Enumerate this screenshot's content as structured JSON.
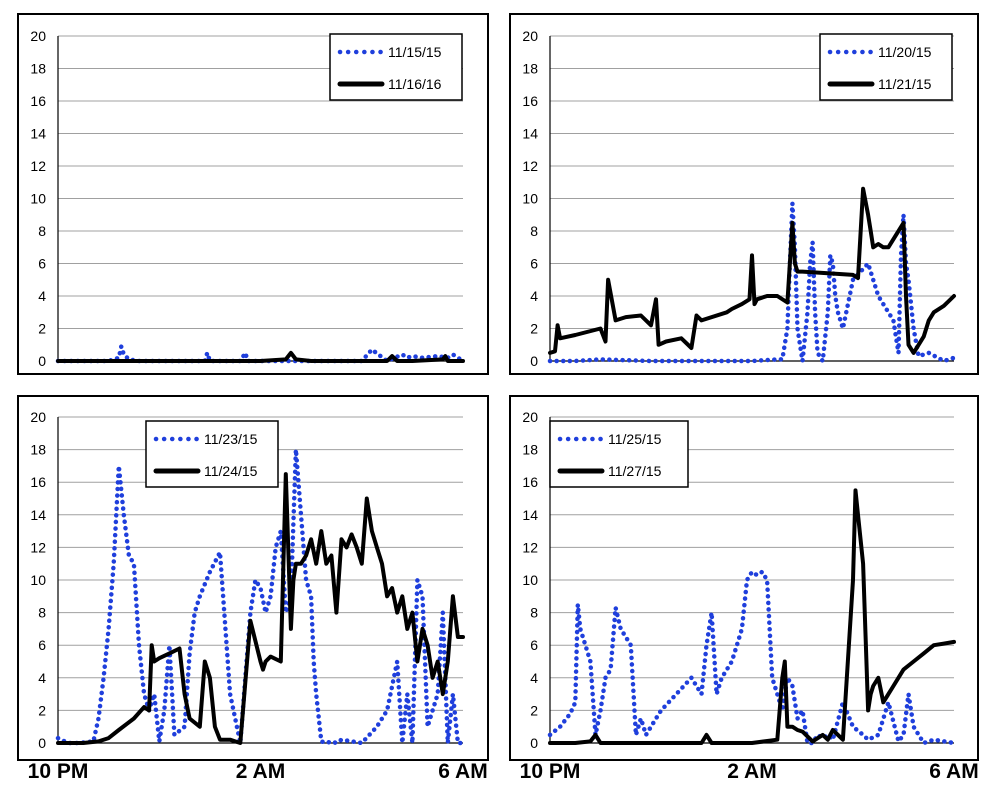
{
  "colors": {
    "dotted_series": "#1f3fdc",
    "solid_series": "#000000",
    "grid": "#a0a0a0"
  },
  "chart_data": [
    {
      "type": "line",
      "ylim": [
        0,
        20
      ],
      "yticks": [
        0,
        2,
        4,
        6,
        8,
        10,
        12,
        14,
        16,
        18,
        20
      ],
      "xlim": [
        0,
        8
      ],
      "xticks": [],
      "grid": "horizontal",
      "legend": "top-right",
      "series": [
        {
          "name": "11/15/15",
          "style": "dotted",
          "color": "#1f3fdc",
          "x": [
            0.0,
            0.5,
            1.0,
            1.2,
            1.25,
            1.3,
            1.4,
            1.6,
            2.0,
            2.5,
            2.9,
            2.95,
            3.0,
            3.2,
            3.6,
            3.7,
            3.75,
            4.0,
            4.5,
            5.0,
            5.5,
            5.9,
            6.0,
            6.2,
            6.5,
            6.8,
            6.9,
            7.0,
            7.2,
            7.5,
            7.7,
            7.8,
            8.0
          ],
          "y": [
            0,
            0,
            0,
            0.2,
            0.9,
            0.4,
            0.1,
            0,
            0,
            0,
            0,
            0.5,
            0,
            0,
            0,
            0.5,
            0,
            0,
            0,
            0,
            0,
            0,
            0,
            0.7,
            0,
            0.4,
            0.2,
            0.3,
            0.2,
            0.3,
            0.2,
            0.4,
            0
          ]
        },
        {
          "name": "11/16/16",
          "style": "solid",
          "color": "#000000",
          "x": [
            0.0,
            1.0,
            2.0,
            3.0,
            4.0,
            4.5,
            4.6,
            4.7,
            5.0,
            6.0,
            6.5,
            6.6,
            6.7,
            7.0,
            7.6,
            7.65,
            7.7,
            8.0
          ],
          "y": [
            0,
            0,
            0,
            0,
            0,
            0.1,
            0.5,
            0.1,
            0,
            0,
            0,
            0.3,
            0,
            0,
            0.1,
            0.3,
            0,
            0
          ]
        }
      ]
    },
    {
      "type": "line",
      "ylim": [
        0,
        20
      ],
      "yticks": [
        0,
        2,
        4,
        6,
        8,
        10,
        12,
        14,
        16,
        18,
        20
      ],
      "xlim": [
        0,
        8
      ],
      "xticks": [],
      "grid": "horizontal",
      "legend": "top-right",
      "series": [
        {
          "name": "11/20/15",
          "style": "dotted",
          "color": "#1f3fdc",
          "x": [
            0.0,
            0.5,
            1.0,
            2.0,
            3.0,
            4.0,
            4.5,
            4.6,
            4.7,
            4.75,
            4.8,
            4.85,
            4.9,
            5.0,
            5.1,
            5.15,
            5.2,
            5.25,
            5.3,
            5.4,
            5.5,
            5.55,
            5.6,
            5.65,
            5.7,
            5.8,
            6.0,
            6.3,
            6.5,
            6.7,
            6.8,
            6.85,
            6.9,
            6.95,
            7.0,
            7.05,
            7.1,
            7.2,
            7.3,
            7.5,
            7.8,
            8.0
          ],
          "y": [
            0,
            0,
            0.1,
            0,
            0,
            0,
            0.1,
            0.1,
            2,
            6,
            9.7,
            7,
            2,
            0,
            3,
            6,
            7.3,
            3,
            0.5,
            0,
            3,
            6.5,
            6,
            4,
            3,
            2,
            5,
            6,
            4,
            3,
            2.5,
            1.5,
            0.5,
            6.5,
            9,
            6,
            5,
            2,
            0.3,
            0.5,
            0,
            0.2
          ]
        },
        {
          "name": "11/21/15",
          "style": "solid",
          "color": "#000000",
          "x": [
            0.0,
            0.1,
            0.15,
            0.2,
            0.5,
            1.0,
            1.1,
            1.15,
            1.3,
            1.5,
            1.8,
            2.0,
            2.1,
            2.15,
            2.3,
            2.6,
            2.8,
            2.9,
            3.0,
            3.5,
            3.6,
            3.8,
            3.95,
            4.0,
            4.05,
            4.1,
            4.3,
            4.5,
            4.7,
            4.8,
            4.85,
            4.9,
            5.0,
            5.5,
            6.0,
            6.1,
            6.2,
            6.3,
            6.35,
            6.4,
            6.5,
            6.6,
            6.7,
            7.0,
            7.05,
            7.1,
            7.2,
            7.4,
            7.5,
            7.6,
            7.8,
            8.0
          ],
          "y": [
            0.5,
            0.6,
            2.2,
            1.4,
            1.6,
            2,
            1.2,
            5,
            2.5,
            2.7,
            2.8,
            2.2,
            3.8,
            1,
            1.2,
            1.4,
            0.8,
            2.8,
            2.5,
            3,
            3.2,
            3.5,
            3.8,
            6.5,
            3.5,
            3.8,
            4,
            4,
            3.6,
            8.5,
            6,
            5.5,
            5.5,
            5.4,
            5.3,
            5.1,
            10.6,
            9,
            8,
            7,
            7.2,
            7,
            7,
            8.5,
            4,
            1,
            0.5,
            1.5,
            2.5,
            3,
            3.4,
            4
          ]
        }
      ]
    },
    {
      "type": "line",
      "ylim": [
        0,
        20
      ],
      "yticks": [
        0,
        2,
        4,
        6,
        8,
        10,
        12,
        14,
        16,
        18,
        20
      ],
      "xlim": [
        0,
        8
      ],
      "xticks": [
        "10 PM",
        "2 AM",
        "6 AM"
      ],
      "xtick_positions": [
        0,
        4,
        8
      ],
      "grid": "horizontal",
      "legend": "top-center",
      "series": [
        {
          "name": "11/23/15",
          "style": "dotted",
          "color": "#1f3fdc",
          "x": [
            0.0,
            0.2,
            0.4,
            0.7,
            0.8,
            0.9,
            1.0,
            1.1,
            1.2,
            1.3,
            1.4,
            1.5,
            1.6,
            1.7,
            1.8,
            1.9,
            2.0,
            2.1,
            2.2,
            2.3,
            2.5,
            2.6,
            2.7,
            2.8,
            3.0,
            3.2,
            3.4,
            3.6,
            3.7,
            3.8,
            3.9,
            4.0,
            4.1,
            4.2,
            4.3,
            4.4,
            4.5,
            4.6,
            4.7,
            4.8,
            4.9,
            5.0,
            5.05,
            5.1,
            5.2,
            5.3,
            5.4,
            5.5,
            5.6,
            6.0,
            6.3,
            6.5,
            6.7,
            6.8,
            6.9,
            7.0,
            7.05,
            7.1,
            7.2,
            7.3,
            7.4,
            7.5,
            7.6,
            7.7,
            7.8,
            7.9,
            8.0
          ],
          "y": [
            0.3,
            0,
            0,
            0.1,
            1.5,
            4,
            7,
            11,
            17,
            14,
            11.5,
            11,
            6,
            3,
            2,
            3,
            0.1,
            2,
            6,
            0.5,
            1,
            5.5,
            8,
            9,
            10.5,
            11.7,
            3,
            0,
            4,
            8,
            10,
            9.5,
            8,
            9,
            12,
            13,
            8,
            9,
            18,
            14,
            10,
            9,
            5,
            3,
            0.1,
            0,
            0.1,
            0,
            0.2,
            0,
            1,
            2,
            5,
            0,
            3,
            0,
            5,
            10,
            9,
            1,
            2,
            3,
            8,
            0,
            3,
            0,
            0
          ]
        },
        {
          "name": "11/24/15",
          "style": "solid",
          "color": "#000000",
          "x": [
            0.0,
            0.5,
            0.8,
            1.0,
            1.2,
            1.5,
            1.7,
            1.8,
            1.85,
            1.9,
            2.0,
            2.2,
            2.4,
            2.5,
            2.6,
            2.8,
            2.9,
            3.0,
            3.1,
            3.2,
            3.3,
            3.4,
            3.5,
            3.6,
            3.8,
            4.0,
            4.05,
            4.1,
            4.2,
            4.4,
            4.5,
            4.6,
            4.65,
            4.7,
            4.8,
            4.9,
            5.0,
            5.1,
            5.2,
            5.3,
            5.4,
            5.5,
            5.6,
            5.7,
            5.8,
            5.9,
            6.0,
            6.1,
            6.2,
            6.3,
            6.4,
            6.5,
            6.6,
            6.7,
            6.8,
            6.9,
            7.0,
            7.1,
            7.2,
            7.3,
            7.4,
            7.5,
            7.6,
            7.7,
            7.8,
            7.9,
            8.0
          ],
          "y": [
            0,
            0,
            0.1,
            0.3,
            0.8,
            1.5,
            2.2,
            2,
            6,
            5,
            5.2,
            5.5,
            5.8,
            3,
            1.5,
            1,
            5,
            4,
            1,
            0.2,
            0.2,
            0.2,
            0.1,
            0,
            7.5,
            5,
            4.5,
            5,
            5.3,
            5,
            16.5,
            7,
            10,
            11,
            11,
            11.5,
            12.5,
            11,
            13,
            11,
            11.5,
            8,
            12.5,
            12,
            12.8,
            12,
            11,
            15,
            13,
            12,
            11,
            9,
            9.5,
            8,
            9,
            7,
            8,
            5,
            7,
            6,
            4,
            5,
            3,
            5,
            9,
            6.5,
            6.5
          ]
        }
      ]
    },
    {
      "type": "line",
      "ylim": [
        0,
        20
      ],
      "yticks": [
        0,
        2,
        4,
        6,
        8,
        10,
        12,
        14,
        16,
        18,
        20
      ],
      "xlim": [
        0,
        8
      ],
      "xticks": [
        "10 PM",
        "2 AM",
        "6 AM"
      ],
      "xtick_positions": [
        0,
        4,
        8
      ],
      "grid": "horizontal",
      "legend": "top-left",
      "series": [
        {
          "name": "11/25/15",
          "style": "dotted",
          "color": "#1f3fdc",
          "x": [
            0.0,
            0.2,
            0.4,
            0.5,
            0.55,
            0.6,
            0.7,
            0.8,
            0.9,
            1.0,
            1.1,
            1.2,
            1.3,
            1.4,
            1.5,
            1.6,
            1.7,
            1.8,
            1.9,
            2.0,
            2.1,
            2.2,
            2.5,
            2.8,
            3.0,
            3.1,
            3.2,
            3.3,
            3.4,
            3.5,
            3.6,
            3.7,
            3.8,
            3.9,
            4.0,
            4.1,
            4.2,
            4.3,
            4.4,
            4.5,
            4.6,
            4.7,
            4.8,
            4.9,
            5.0,
            5.1,
            5.2,
            5.3,
            5.4,
            5.5,
            5.6,
            5.8,
            6.0,
            6.2,
            6.3,
            6.5,
            6.7,
            6.9,
            7.0,
            7.1,
            7.2,
            7.4,
            7.6,
            8.0
          ],
          "y": [
            0.5,
            1,
            1.8,
            2.5,
            8.5,
            7,
            6,
            5,
            0.5,
            2,
            4,
            4.5,
            8.3,
            7,
            6.5,
            6,
            0.5,
            1.5,
            0.5,
            1,
            1.5,
            2,
            3,
            4,
            3,
            6,
            8,
            3,
            4,
            4.5,
            5,
            6,
            7,
            10,
            10.5,
            10.3,
            10.5,
            10,
            4,
            3,
            2,
            4,
            3.5,
            1.5,
            2,
            0,
            0,
            0.5,
            0.3,
            0.5,
            0.2,
            2.5,
            1,
            0.5,
            0.2,
            0.5,
            2.5,
            0.1,
            0.5,
            3,
            1,
            0,
            0.2,
            0
          ]
        },
        {
          "name": "11/27/15",
          "style": "solid",
          "color": "#000000",
          "x": [
            0.0,
            0.5,
            0.8,
            0.9,
            1.0,
            1.5,
            2.0,
            2.5,
            3.0,
            3.1,
            3.2,
            3.5,
            4.0,
            4.5,
            4.6,
            4.65,
            4.7,
            4.8,
            4.9,
            5.0,
            5.2,
            5.4,
            5.5,
            5.6,
            5.8,
            6.0,
            6.05,
            6.1,
            6.2,
            6.3,
            6.35,
            6.4,
            6.5,
            6.6,
            6.7,
            6.8,
            7.0,
            7.2,
            7.4,
            7.6,
            7.8,
            8.0
          ],
          "y": [
            0,
            0,
            0.1,
            0.5,
            0,
            0,
            0,
            0,
            0,
            0.5,
            0,
            0,
            0,
            0.2,
            4,
            5,
            1,
            1,
            0.8,
            0.7,
            0.1,
            0.5,
            0.2,
            0.8,
            0.2,
            10,
            15.5,
            14,
            11,
            2,
            3,
            3.5,
            4,
            2.5,
            3,
            3.5,
            4.5,
            5,
            5.5,
            6,
            6.1,
            6.2
          ]
        }
      ]
    }
  ]
}
